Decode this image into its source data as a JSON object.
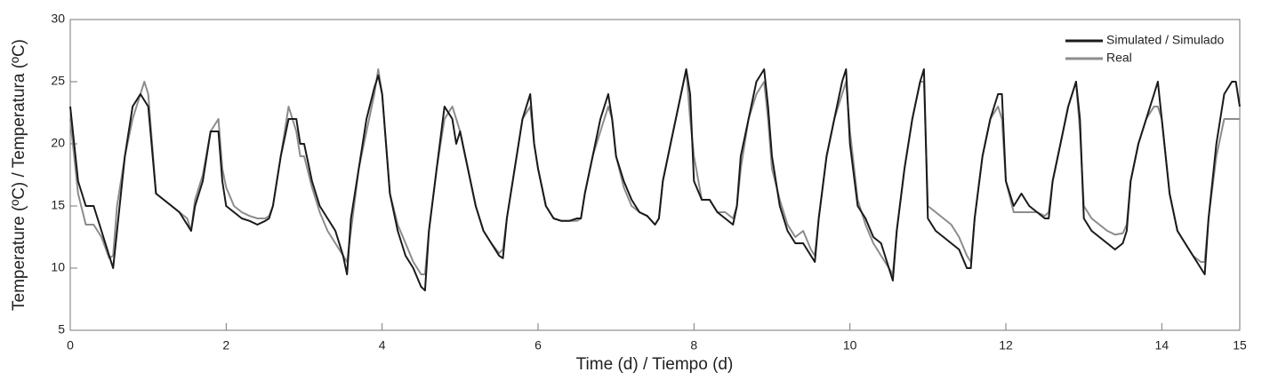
{
  "chart_data": {
    "type": "line",
    "xlabel": "Time (d) / Tiempo (d)",
    "ylabel": "Temperature (ºC) / Temperatura (ºC)",
    "x": [
      0,
      0.1,
      0.2,
      0.3,
      0.4,
      0.5,
      0.55,
      0.6,
      0.7,
      0.8,
      0.9,
      0.95,
      1,
      1.1,
      1.2,
      1.3,
      1.4,
      1.5,
      1.55,
      1.6,
      1.7,
      1.8,
      1.9,
      1.95,
      2,
      2.1,
      2.2,
      2.3,
      2.4,
      2.5,
      2.55,
      2.6,
      2.7,
      2.8,
      2.9,
      2.95,
      3,
      3.1,
      3.2,
      3.3,
      3.4,
      3.5,
      3.55,
      3.6,
      3.7,
      3.8,
      3.9,
      3.95,
      4,
      4.1,
      4.2,
      4.3,
      4.4,
      4.5,
      4.55,
      4.6,
      4.7,
      4.8,
      4.9,
      4.95,
      5,
      5.1,
      5.2,
      5.3,
      5.4,
      5.5,
      5.55,
      5.6,
      5.7,
      5.8,
      5.9,
      5.95,
      6,
      6.1,
      6.2,
      6.3,
      6.4,
      6.5,
      6.55,
      6.6,
      6.7,
      6.8,
      6.9,
      6.95,
      7,
      7.1,
      7.2,
      7.3,
      7.4,
      7.5,
      7.55,
      7.6,
      7.7,
      7.8,
      7.9,
      7.95,
      8,
      8.1,
      8.2,
      8.3,
      8.4,
      8.5,
      8.55,
      8.6,
      8.7,
      8.8,
      8.9,
      8.95,
      9,
      9.1,
      9.2,
      9.3,
      9.4,
      9.5,
      9.55,
      9.6,
      9.7,
      9.8,
      9.9,
      9.95,
      10,
      10.1,
      10.2,
      10.3,
      10.4,
      10.5,
      10.55,
      10.6,
      10.7,
      10.8,
      10.9,
      10.95,
      11,
      11.1,
      11.2,
      11.3,
      11.4,
      11.5,
      11.55,
      11.6,
      11.7,
      11.8,
      11.9,
      11.95,
      12,
      12.1,
      12.2,
      12.3,
      12.4,
      12.5,
      12.55,
      12.6,
      12.7,
      12.8,
      12.9,
      12.95,
      13,
      13.1,
      13.2,
      13.3,
      13.4,
      13.5,
      13.55,
      13.6,
      13.7,
      13.8,
      13.9,
      13.95,
      14,
      14.1,
      14.2,
      14.3,
      14.4,
      14.5,
      14.55,
      14.6,
      14.7,
      14.8,
      14.9,
      14.95,
      15
    ],
    "series": [
      {
        "name": "Simulated / Simulado",
        "color": "#1a1a1a",
        "values": [
          23,
          17,
          15,
          15,
          13,
          11,
          10,
          13,
          19,
          23,
          24,
          23.5,
          23,
          16,
          15.5,
          15,
          14.5,
          13.5,
          13,
          15,
          17,
          21,
          21,
          17,
          15,
          14.5,
          14,
          13.8,
          13.5,
          13.8,
          14,
          15,
          19,
          22,
          22,
          20,
          20,
          17,
          15,
          14,
          13,
          11,
          9.5,
          14,
          18,
          22,
          24.5,
          25.5,
          24,
          16,
          13,
          11,
          10,
          8.5,
          8.2,
          13,
          18,
          23,
          22,
          20,
          21,
          18,
          15,
          13,
          12,
          11,
          10.8,
          14,
          18,
          22,
          24,
          20,
          18,
          15,
          14,
          13.8,
          13.8,
          14,
          14,
          16,
          19,
          22,
          24,
          22,
          19,
          17,
          15.5,
          14.5,
          14.2,
          13.5,
          14,
          17,
          20,
          23,
          26,
          24,
          17,
          15.5,
          15.5,
          14.5,
          14,
          13.5,
          15,
          19,
          22,
          25,
          26,
          23,
          19,
          15,
          13,
          12,
          12,
          11,
          10.5,
          14,
          19,
          22,
          25,
          26,
          20,
          15,
          14,
          12.5,
          12,
          10,
          9,
          13,
          18,
          22,
          25,
          26,
          14,
          13,
          12.5,
          12,
          11.5,
          10,
          10,
          14,
          19,
          22,
          24,
          24,
          17,
          15,
          16,
          15,
          14.5,
          14,
          14,
          17,
          20,
          23,
          25,
          22,
          14,
          13,
          12.5,
          12,
          11.5,
          12,
          13,
          17,
          20,
          22,
          24,
          25,
          22,
          16,
          13,
          12,
          11,
          10,
          9.5,
          14,
          20,
          24,
          25,
          25,
          23
        ]
      },
      {
        "name": "Real",
        "color": "#8c8c8c",
        "values": [
          22,
          16,
          13.5,
          13.5,
          12.5,
          10.8,
          11,
          15,
          19,
          22,
          24,
          25,
          24,
          16,
          15.5,
          15,
          14.5,
          14,
          13,
          15.5,
          17.5,
          21,
          22,
          18,
          16.5,
          15,
          14.5,
          14.2,
          14,
          14,
          14.2,
          15,
          19,
          23,
          21,
          19,
          19,
          16.5,
          14.5,
          13,
          12,
          11,
          10.5,
          13,
          18,
          21,
          24,
          26,
          24,
          16,
          13.5,
          12,
          10.5,
          9.5,
          9.5,
          13,
          18,
          22,
          23,
          22,
          21,
          18,
          15,
          13,
          12,
          11.2,
          11.5,
          14,
          18,
          22,
          23,
          20,
          18,
          15,
          14,
          13.8,
          13.8,
          13.8,
          14,
          16,
          19,
          21,
          23,
          22,
          19,
          16.5,
          15,
          14.5,
          14.2,
          13.5,
          14,
          17,
          20,
          23,
          26,
          22,
          19,
          15.5,
          15.5,
          14.5,
          14.5,
          14,
          15,
          18,
          22,
          24,
          25,
          22,
          18,
          15.5,
          13.5,
          12.5,
          13,
          11.5,
          11,
          14,
          19,
          22,
          24,
          25,
          21,
          15.5,
          13.5,
          12,
          11,
          10,
          9.5,
          13,
          18,
          22,
          25,
          25,
          15,
          14.5,
          14,
          13.5,
          12.5,
          11,
          10.5,
          14,
          19,
          22,
          23,
          22,
          17,
          14.5,
          14.5,
          14.5,
          14.5,
          14.2,
          14.5,
          17,
          20,
          23,
          25,
          21,
          15,
          14,
          13.5,
          13,
          12.7,
          12.8,
          13.5,
          17,
          20,
          22,
          23,
          23,
          22,
          16,
          13,
          12,
          11,
          10.5,
          10.5,
          14,
          19,
          22,
          22,
          22,
          22
        ]
      }
    ],
    "xlim": [
      0,
      15
    ],
    "xticks": [
      0,
      2,
      4,
      6,
      8,
      10,
      12,
      14,
      15
    ],
    "ylim": [
      5,
      30
    ],
    "yticks": [
      5,
      10,
      15,
      20,
      25,
      30
    ],
    "grid": false,
    "legend": "upper right"
  }
}
